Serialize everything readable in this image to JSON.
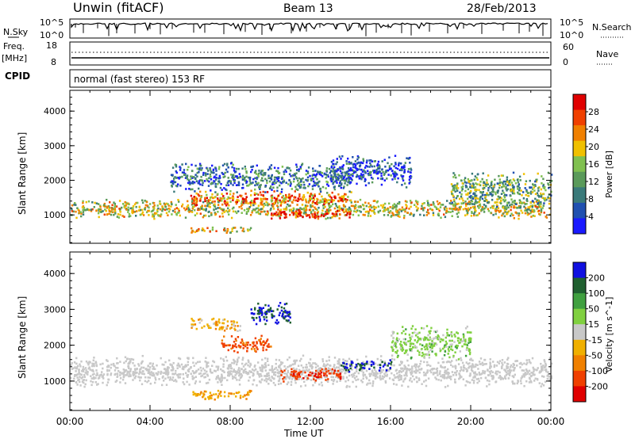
{
  "header": {
    "station": "Unwin (fitACF)",
    "beam": "Beam 13",
    "date": "28/Feb/2013"
  },
  "status_panels": {
    "nsky_label": "N.Sky",
    "nsky_ticks": [
      "10^5",
      "10^0"
    ],
    "nsearch_label": "N.Search",
    "nsearch_ticks": [
      "10^5",
      "10^0"
    ],
    "freq_label": "Freq.",
    "freq_unit": "[MHz]",
    "freq_ticks": [
      "18",
      "8"
    ],
    "nave_label": "Nave",
    "nave_ticks": [
      "60",
      "0"
    ],
    "cpid_label": "CPID",
    "cpid_text": "normal (fast stereo) 153 RF"
  },
  "chart_data": [
    {
      "type": "heatmap",
      "title": "",
      "xlabel": "",
      "ylabel": "Slant Range [km]",
      "xlim": [
        "00:00",
        "00:00"
      ],
      "ylim": [
        180,
        4600
      ],
      "x_ticks": [
        "00:00",
        "04:00",
        "08:00",
        "12:00",
        "16:00",
        "20:00",
        "00:00"
      ],
      "y_ticks": [
        "1000",
        "2000",
        "3000",
        "4000"
      ],
      "colorbar": {
        "label": "Power [dB]",
        "ticks": [
          "4",
          "8",
          "12",
          "16",
          "20",
          "24",
          "28"
        ],
        "range": [
          0,
          32
        ],
        "colors": [
          "#1a1aff",
          "#2050b0",
          "#3a7a7a",
          "#5a9a5a",
          "#80c050",
          "#f0c000",
          "#f08000",
          "#f04000",
          "#e00000"
        ]
      },
      "scatter_bands": [
        {
          "start_h": 0.0,
          "end_h": 24.0,
          "center_km": 1200,
          "width_km": 300,
          "level": 0.55
        },
        {
          "start_h": 6.0,
          "end_h": 14.0,
          "center_km": 1500,
          "width_km": 250,
          "level": 0.75
        },
        {
          "start_h": 10.0,
          "end_h": 14.0,
          "center_km": 1050,
          "width_km": 150,
          "level": 0.95
        },
        {
          "start_h": 5.0,
          "end_h": 14.0,
          "center_km": 2100,
          "width_km": 450,
          "level": 0.25
        },
        {
          "start_h": 13.0,
          "end_h": 17.0,
          "center_km": 2300,
          "width_km": 500,
          "level": 0.15
        },
        {
          "start_h": 6.0,
          "end_h": 9.0,
          "center_km": 600,
          "width_km": 100,
          "level": 0.6
        },
        {
          "start_h": 19.0,
          "end_h": 24.0,
          "center_km": 1700,
          "width_km": 600,
          "level": 0.4
        }
      ]
    },
    {
      "type": "heatmap",
      "title": "",
      "xlabel": "Time UT",
      "ylabel": "Slant Range [km]",
      "xlim": [
        "00:00",
        "00:00"
      ],
      "ylim": [
        180,
        4600
      ],
      "x_ticks": [
        "00:00",
        "04:00",
        "08:00",
        "12:00",
        "16:00",
        "20:00",
        "00:00"
      ],
      "y_ticks": [
        "1000",
        "2000",
        "3000",
        "4000"
      ],
      "colorbar": {
        "label": "Velocity [m s^-1]",
        "ticks": [
          "200",
          "100",
          "50",
          "15",
          "-15",
          "-50",
          "-100",
          "-200"
        ],
        "range": [
          -250,
          250
        ],
        "colors": [
          "#1010e0",
          "#206030",
          "#40a040",
          "#80d040",
          "#c8c8c8",
          "#f0b000",
          "#f08000",
          "#f04000",
          "#e00000"
        ]
      },
      "scatter_bands": [
        {
          "start_h": 0.0,
          "end_h": 24.0,
          "center_km": 1300,
          "width_km": 450,
          "level": 0.0
        },
        {
          "start_h": 7.5,
          "end_h": 10.0,
          "center_km": 2050,
          "width_km": 250,
          "level": -150
        },
        {
          "start_h": 9.0,
          "end_h": 11.0,
          "center_km": 2900,
          "width_km": 350,
          "level": 200
        },
        {
          "start_h": 10.5,
          "end_h": 13.5,
          "center_km": 1200,
          "width_km": 200,
          "level": -180
        },
        {
          "start_h": 13.5,
          "end_h": 16.0,
          "center_km": 1450,
          "width_km": 180,
          "level": 200
        },
        {
          "start_h": 16.0,
          "end_h": 20.0,
          "center_km": 2100,
          "width_km": 500,
          "level": 50
        },
        {
          "start_h": 6.0,
          "end_h": 8.5,
          "center_km": 2600,
          "width_km": 200,
          "level": -60
        },
        {
          "start_h": 6.0,
          "end_h": 9.0,
          "center_km": 650,
          "width_km": 150,
          "level": -80
        }
      ]
    }
  ]
}
